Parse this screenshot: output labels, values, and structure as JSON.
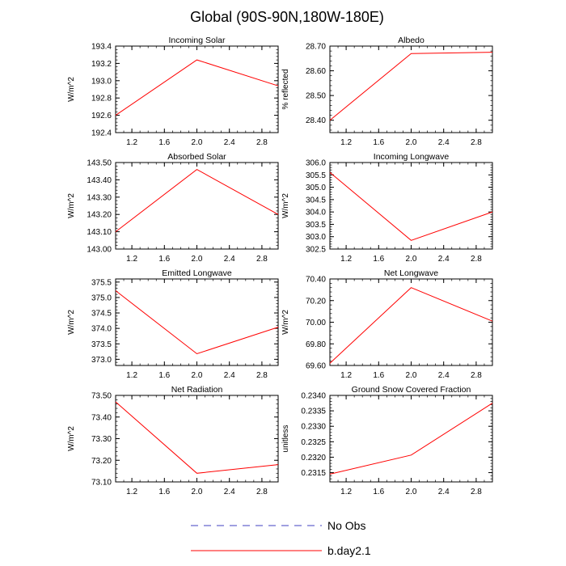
{
  "figure_title": "Global (90S-90N,180W-180E)",
  "legend": [
    {
      "label": "No Obs",
      "color": "#4040c0",
      "style": "dashed"
    },
    {
      "label": "b.day2.1",
      "color": "#ff0000",
      "style": "solid"
    }
  ],
  "chart_data": [
    {
      "type": "line",
      "title": "Incoming Solar",
      "ylabel": "W/m^2",
      "xlim": [
        1,
        3
      ],
      "ylim": [
        192.4,
        193.4
      ],
      "x_ticks": [
        "1.2",
        "1.6",
        "2.0",
        "2.4",
        "2.8"
      ],
      "y_ticks": [
        "192.4",
        "192.6",
        "192.8",
        "193.0",
        "193.2",
        "193.4"
      ],
      "series": [
        {
          "color": "#ff0000",
          "x": [
            1,
            2,
            3
          ],
          "y": [
            192.6,
            193.24,
            192.94
          ]
        }
      ]
    },
    {
      "type": "line",
      "title": "Albedo",
      "ylabel": "% reflected",
      "xlim": [
        1,
        3
      ],
      "ylim": [
        28.35,
        28.7
      ],
      "x_ticks": [
        "1.2",
        "1.6",
        "2.0",
        "2.4",
        "2.8"
      ],
      "y_ticks": [
        "28.40",
        "28.50",
        "28.60",
        "28.70"
      ],
      "series": [
        {
          "color": "#ff0000",
          "x": [
            1,
            2,
            3
          ],
          "y": [
            28.4,
            28.67,
            28.675
          ]
        }
      ]
    },
    {
      "type": "line",
      "title": "Absorbed Solar",
      "ylabel": "W/m^2",
      "xlim": [
        1,
        3
      ],
      "ylim": [
        143.0,
        143.5
      ],
      "x_ticks": [
        "1.2",
        "1.6",
        "2.0",
        "2.4",
        "2.8"
      ],
      "y_ticks": [
        "143.00",
        "143.10",
        "143.20",
        "143.30",
        "143.40",
        "143.50"
      ],
      "series": [
        {
          "color": "#ff0000",
          "x": [
            1,
            2,
            3
          ],
          "y": [
            143.1,
            143.46,
            143.2
          ]
        }
      ]
    },
    {
      "type": "line",
      "title": "Incoming Longwave",
      "ylabel": "W/m^2",
      "xlim": [
        1,
        3
      ],
      "ylim": [
        302.5,
        306.0
      ],
      "x_ticks": [
        "1.2",
        "1.6",
        "2.0",
        "2.4",
        "2.8"
      ],
      "y_ticks": [
        "302.5",
        "303.0",
        "303.5",
        "304.0",
        "304.5",
        "305.0",
        "305.5",
        "306.0"
      ],
      "series": [
        {
          "color": "#ff0000",
          "x": [
            1,
            2,
            3
          ],
          "y": [
            305.6,
            302.85,
            304.0
          ]
        }
      ]
    },
    {
      "type": "line",
      "title": "Emitted Longwave",
      "ylabel": "W/m^2",
      "xlim": [
        1,
        3
      ],
      "ylim": [
        372.8,
        375.6
      ],
      "x_ticks": [
        "1.2",
        "1.6",
        "2.0",
        "2.4",
        "2.8"
      ],
      "y_ticks": [
        "373.0",
        "373.5",
        "374.0",
        "374.5",
        "375.0",
        "375.5"
      ],
      "series": [
        {
          "color": "#ff0000",
          "x": [
            1,
            2,
            3
          ],
          "y": [
            375.22,
            373.18,
            374.04
          ]
        }
      ]
    },
    {
      "type": "line",
      "title": "Net Longwave",
      "ylabel": "W/m^2",
      "xlim": [
        1,
        3
      ],
      "ylim": [
        69.6,
        70.4
      ],
      "x_ticks": [
        "1.2",
        "1.6",
        "2.0",
        "2.4",
        "2.8"
      ],
      "y_ticks": [
        "69.60",
        "69.80",
        "70.00",
        "70.20",
        "70.40"
      ],
      "series": [
        {
          "color": "#ff0000",
          "x": [
            1,
            2,
            3
          ],
          "y": [
            69.62,
            70.32,
            70.01
          ]
        }
      ]
    },
    {
      "type": "line",
      "title": "Net Radiation",
      "ylabel": "W/m^2",
      "xlim": [
        1,
        3
      ],
      "ylim": [
        73.1,
        73.5
      ],
      "x_ticks": [
        "1.2",
        "1.6",
        "2.0",
        "2.4",
        "2.8"
      ],
      "y_ticks": [
        "73.10",
        "73.20",
        "73.30",
        "73.40",
        "73.50"
      ],
      "series": [
        {
          "color": "#ff0000",
          "x": [
            1,
            2,
            3
          ],
          "y": [
            73.47,
            73.14,
            73.18
          ]
        }
      ]
    },
    {
      "type": "line",
      "title": "Ground Snow Covered Fraction",
      "ylabel": "unitless",
      "xlim": [
        1,
        3
      ],
      "ylim": [
        0.2312,
        0.234
      ],
      "x_ticks": [
        "1.2",
        "1.6",
        "2.0",
        "2.4",
        "2.8"
      ],
      "y_ticks": [
        "0.2315",
        "0.2320",
        "0.2325",
        "0.2330",
        "0.2335",
        "0.2340"
      ],
      "series": [
        {
          "color": "#ff0000",
          "x": [
            1,
            2,
            3
          ],
          "y": [
            0.23145,
            0.23207,
            0.23375
          ]
        }
      ]
    }
  ]
}
